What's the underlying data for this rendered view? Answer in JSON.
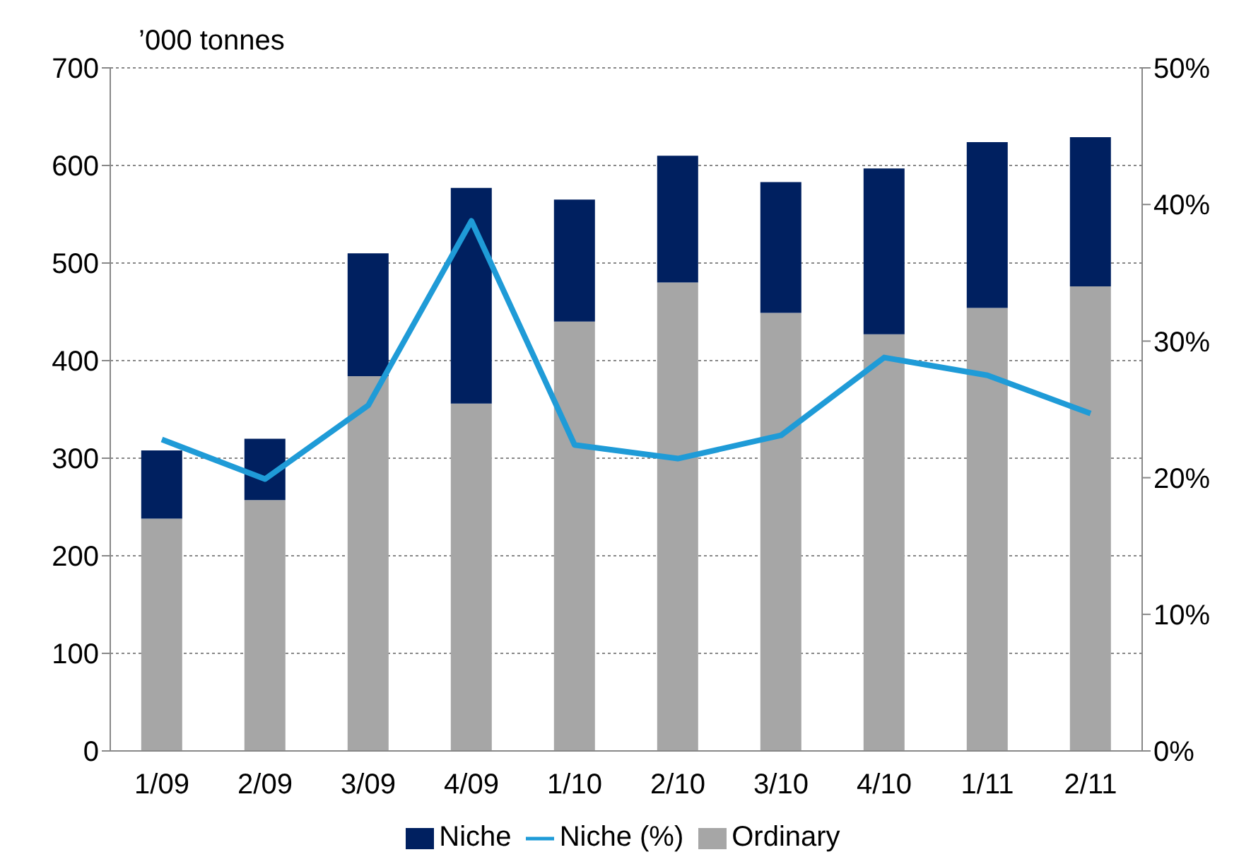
{
  "chart_data": {
    "type": "bar",
    "ylabel": "’000 tonnes",
    "categories": [
      "1/09",
      "2/09",
      "3/09",
      "4/09",
      "1/10",
      "2/10",
      "3/10",
      "4/10",
      "1/11",
      "2/11"
    ],
    "stacked": true,
    "series": [
      {
        "name": "Ordinary",
        "color": "#a6a6a6",
        "values": [
          238,
          257,
          384,
          356,
          440,
          480,
          449,
          427,
          454,
          476
        ]
      },
      {
        "name": "Niche",
        "color": "#002060",
        "values": [
          70,
          63,
          126,
          221,
          125,
          130,
          134,
          170,
          170,
          153
        ]
      },
      {
        "name": "Niche (%)",
        "type": "line",
        "axis": "y2",
        "color": "#1f9bd7",
        "values": [
          22.8,
          19.9,
          25.3,
          38.8,
          22.4,
          21.4,
          23.1,
          28.8,
          27.5,
          24.7
        ]
      }
    ],
    "ylim": [
      0,
      700
    ],
    "yticks": [
      0,
      100,
      200,
      300,
      400,
      500,
      600,
      700
    ],
    "y2lim": [
      0,
      50
    ],
    "y2ticks": [
      {
        "value": 0,
        "label": "0%"
      },
      {
        "value": 10,
        "label": "10%"
      },
      {
        "value": 20,
        "label": "20%"
      },
      {
        "value": 30,
        "label": "30%"
      },
      {
        "value": 40,
        "label": "40%"
      },
      {
        "value": 50,
        "label": "50%"
      }
    ],
    "grid": "y",
    "legend": "bottom",
    "marker": "none",
    "line_style": "solid"
  }
}
